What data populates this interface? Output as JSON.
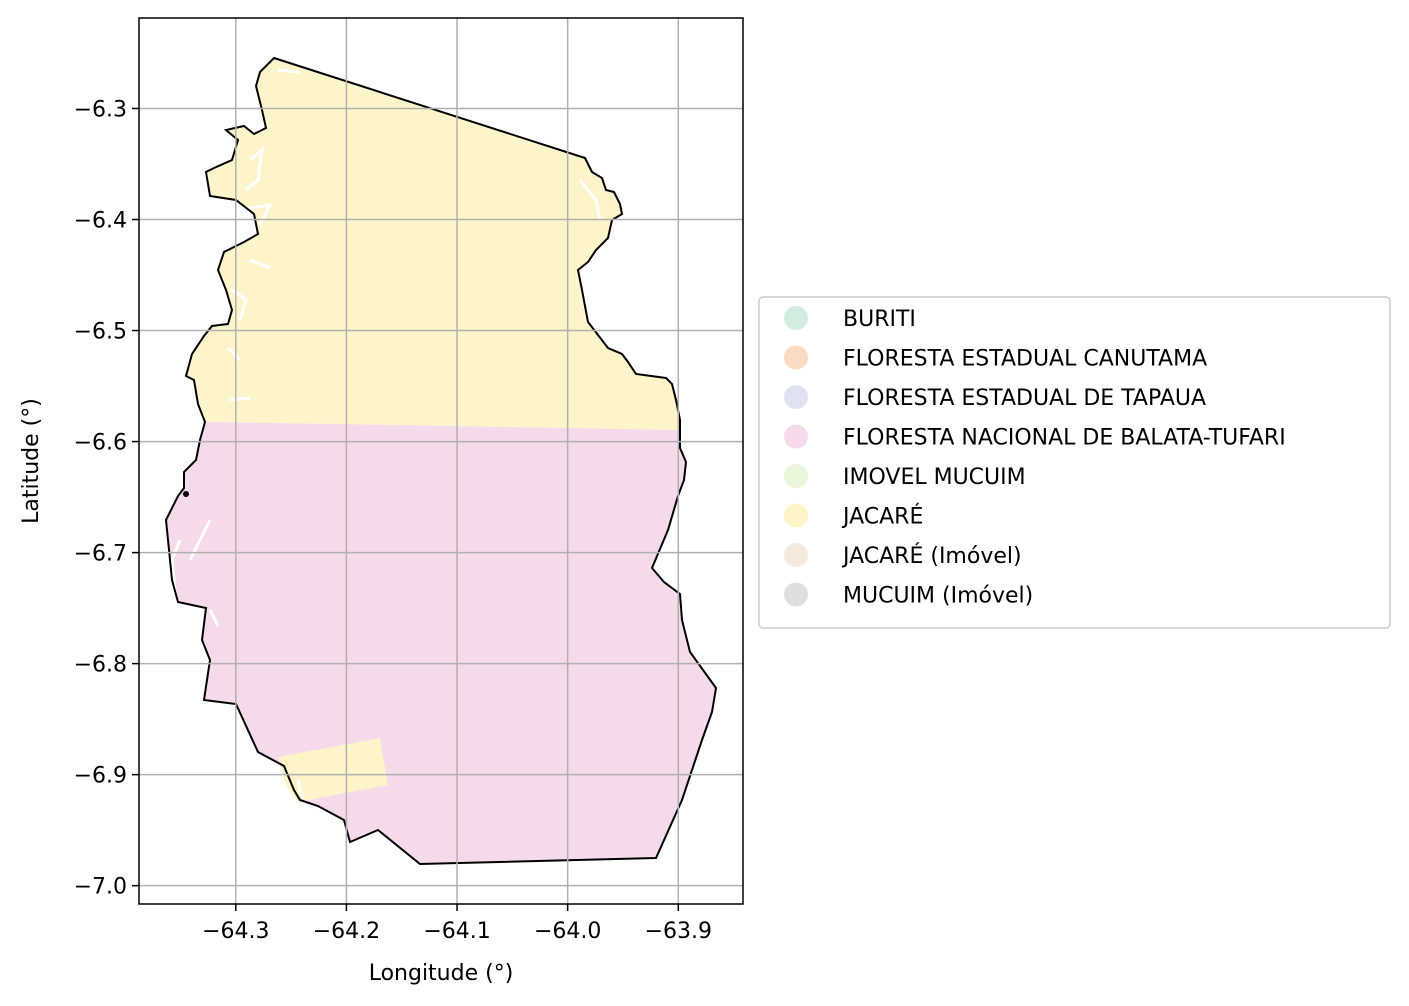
{
  "chart_data": {
    "type": "map",
    "xlabel": "Longitude (°)",
    "ylabel": "Latitude (°)",
    "xlim": [
      -64.3875,
      -63.8415
    ],
    "ylim": [
      -7.0165,
      -6.2185
    ],
    "xticks": [
      -64.3,
      -64.2,
      -64.1,
      -64.0,
      -63.9
    ],
    "xtick_labels": [
      "−64.3",
      "−64.2",
      "−64.1",
      "−64.0",
      "−63.9"
    ],
    "yticks": [
      -6.3,
      -6.4,
      -6.5,
      -6.6,
      -6.7,
      -6.8,
      -6.9,
      -7.0
    ],
    "ytick_labels": [
      "−6.3",
      "−6.4",
      "−6.5",
      "−6.6",
      "−6.7",
      "−6.8",
      "−6.9",
      "−7.0"
    ],
    "grid": true,
    "legend_position": "center-right (outside plot)",
    "legend": [
      {
        "label": "BURITI",
        "color": "#d2ece0"
      },
      {
        "label": "FLORESTA ESTADUAL CANUTAMA",
        "color": "#fbdac4"
      },
      {
        "label": "FLORESTA ESTADUAL DE TAPAUA",
        "color": "#dfe2f0"
      },
      {
        "label": "FLORESTA NACIONAL DE BALATA-TUFARI",
        "color": "#f5daeb"
      },
      {
        "label": "IMOVEL MUCUIM",
        "color": "#eaf6da"
      },
      {
        "label": "JACARÉ",
        "color": "#fef4c9"
      },
      {
        "label": "JACARÉ (Imóvel)",
        "color": "#f4ebde"
      },
      {
        "label": "MUCUIM (Imóvel)",
        "color": "#dedede"
      }
    ],
    "regions": [
      {
        "name": "JACARÉ",
        "color": "#fef4c9",
        "extent": {
          "lon": [
            -64.34,
            -63.9
          ],
          "lat": [
            -6.59,
            -6.25
          ]
        }
      },
      {
        "name": "FLORESTA NACIONAL DE BALATA-TUFARI",
        "color": "#f5daeb",
        "extent": {
          "lon": [
            -64.36,
            -63.86
          ],
          "lat": [
            -6.98,
            -6.58
          ]
        }
      },
      {
        "name": "JACARÉ",
        "color": "#fef4c9",
        "extent": {
          "lon": [
            -64.26,
            -64.16
          ],
          "lat": [
            -6.92,
            -6.87
          ]
        }
      }
    ]
  }
}
